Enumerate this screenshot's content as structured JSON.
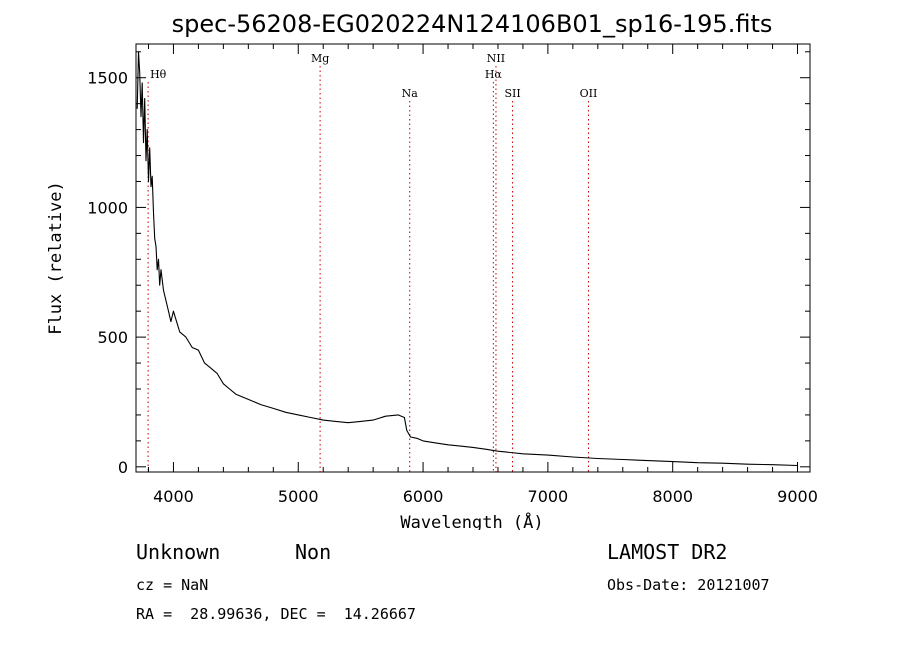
{
  "chart_data": {
    "type": "line",
    "title": "spec-56208-EG020224N124106B01_sp16-195.fits",
    "xlabel": "Wavelength (Å)",
    "ylabel": "Flux (relative)",
    "xlim": [
      3700,
      9100
    ],
    "ylim": [
      -20,
      1630
    ],
    "xticks": [
      4000,
      5000,
      6000,
      7000,
      8000,
      9000
    ],
    "xtick_labels": [
      "4000",
      "5000",
      "6000",
      "7000",
      "8000",
      "9000"
    ],
    "yticks": [
      0,
      500,
      1000,
      1500
    ],
    "ytick_labels": [
      "0",
      "500",
      "1000",
      "1500"
    ],
    "grid": false,
    "line_color": "#000000",
    "marker_color": "#cc0000",
    "spectral_lines": [
      {
        "label": "Hθ",
        "x": 3797,
        "row": "top"
      },
      {
        "label": "Mg",
        "x": 5175,
        "row": "upper"
      },
      {
        "label": "Na",
        "x": 5893,
        "row": "lower"
      },
      {
        "label": "NII",
        "x": 6584,
        "row": "upper"
      },
      {
        "label": "Hα",
        "x": 6563,
        "row": "middle"
      },
      {
        "label": "SII",
        "x": 6717,
        "row": "lower"
      },
      {
        "label": "OII",
        "x": 7325,
        "row": "lower"
      }
    ],
    "series": [
      {
        "x": [
          3710,
          3720,
          3730,
          3740,
          3750,
          3760,
          3770,
          3780,
          3790,
          3800,
          3810,
          3820,
          3830,
          3840,
          3850,
          3860,
          3870,
          3880,
          3890,
          3900,
          3920,
          3940,
          3960,
          3980,
          4000,
          4050,
          4100,
          4150,
          4200,
          4250,
          4300,
          4350,
          4400,
          4450,
          4500,
          4600,
          4700,
          4800,
          4900,
          5000,
          5100,
          5200,
          5300,
          5400,
          5500,
          5600,
          5700,
          5800,
          5850,
          5870,
          5900,
          5950,
          6000,
          6100,
          6200,
          6300,
          6400,
          6500,
          6600,
          6700,
          6800,
          7000,
          7200,
          7400,
          7600,
          7800,
          8000,
          8200,
          8400,
          8600,
          8800,
          9000
        ],
        "y": [
          1380,
          1600,
          1520,
          1350,
          1480,
          1250,
          1420,
          1180,
          1300,
          1100,
          1230,
          1080,
          1120,
          980,
          880,
          850,
          760,
          800,
          700,
          760,
          680,
          640,
          600,
          560,
          600,
          520,
          500,
          460,
          450,
          400,
          380,
          360,
          320,
          300,
          280,
          260,
          240,
          225,
          210,
          200,
          190,
          180,
          175,
          170,
          175,
          180,
          195,
          200,
          190,
          140,
          115,
          110,
          100,
          92,
          85,
          80,
          75,
          68,
          60,
          55,
          50,
          45,
          38,
          32,
          28,
          24,
          20,
          16,
          14,
          10,
          8,
          5
        ]
      }
    ]
  },
  "info": {
    "class": "Unknown",
    "subclass": "Non",
    "survey": "LAMOST DR2",
    "cz": "cz = NaN",
    "obs_date": "Obs-Date: 20121007",
    "coords": "RA =  28.99636, DEC =  14.26667"
  }
}
